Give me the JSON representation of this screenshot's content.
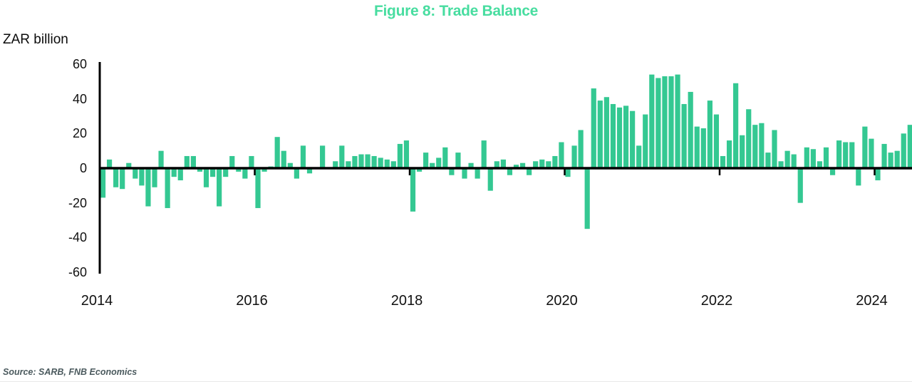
{
  "title": "Figure 8: Trade Balance",
  "y_axis_unit": "ZAR billion",
  "source_note": "Source: SARB, FNB Economics",
  "colors": {
    "title_green": "#48dda0",
    "bar_green": "#34c892",
    "axis_black": "#000000",
    "source_gray": "#4b5a5e"
  },
  "chart_data": {
    "type": "bar",
    "title": "Figure 8: Trade Balance",
    "ylabel": "ZAR billion",
    "unit": "ZAR billion, monthly trade balance",
    "ylim": [
      -60,
      60
    ],
    "y_ticks": [
      60,
      40,
      20,
      0,
      -20,
      -40,
      -60
    ],
    "x_ticks": [
      "2014",
      "2016",
      "2018",
      "2020",
      "2022",
      "2024"
    ],
    "grid": false,
    "legend": "none",
    "frequency": "monthly",
    "start": "2014-01",
    "end": "2024-06",
    "values": [
      -17,
      5,
      -11,
      -12,
      3,
      -6,
      -10,
      -22,
      -11,
      10,
      -23,
      -5,
      -7,
      7,
      7,
      -2,
      -11,
      -5,
      -22,
      -5,
      7,
      -2,
      -6,
      7,
      -23,
      -2,
      1,
      18,
      10,
      3,
      -6,
      13,
      -3,
      0,
      13,
      0,
      4,
      13,
      4,
      7,
      8,
      8,
      7,
      6,
      5,
      4,
      14,
      16,
      -25,
      -2,
      9,
      3,
      6,
      12,
      -4,
      9,
      -6,
      3,
      -6,
      16,
      -13,
      4,
      5,
      -4,
      2,
      3,
      -4,
      4,
      5,
      4,
      7,
      15,
      -5,
      13,
      22,
      -35,
      46,
      39,
      41,
      37,
      35,
      36,
      33,
      13,
      31,
      54,
      52,
      53,
      53,
      54,
      37,
      44,
      24,
      23,
      39,
      31,
      7,
      16,
      49,
      19,
      34,
      25,
      26,
      9,
      22,
      4,
      10,
      8,
      -20,
      12,
      11,
      4,
      12,
      -4,
      16,
      15,
      15,
      -10,
      24,
      17,
      -7,
      14,
      9,
      10,
      20,
      25
    ]
  }
}
